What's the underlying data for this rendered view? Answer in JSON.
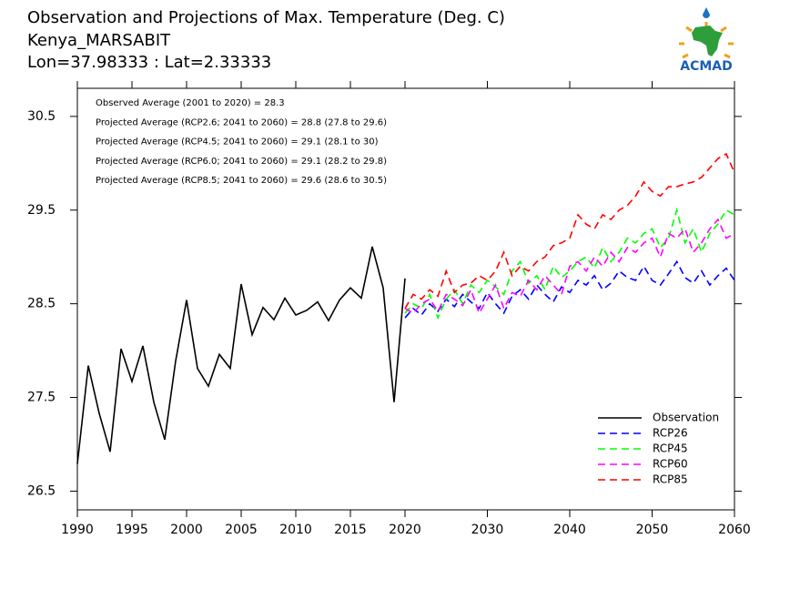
{
  "chart_data": {
    "type": "line",
    "title": "Observation and Projections of Max. Temperature (Deg. C)",
    "subtitle": [
      "Kenya_MARSABIT",
      "Lon=37.98333 : Lat=2.33333"
    ],
    "logo": "ACMAD",
    "annotations": [
      "Observed Average (2001 to 2020) = 28.3",
      "Projected Average (RCP2.6; 2041 to 2060) = 28.8 (27.8 to 29.6)",
      "Projected Average (RCP4.5; 2041 to 2060) = 29.1 (28.1 to 30)",
      "Projected Average (RCP6.0; 2041 to 2060) = 29.1 (28.2 to 29.8)",
      "Projected Average (RCP8.5; 2041 to 2060) = 29.6 (28.6 to 30.5)"
    ],
    "xlim": [
      1990,
      2060
    ],
    "xticks": [
      1990,
      1995,
      2000,
      2005,
      2010,
      2015,
      2020,
      2030,
      2040,
      2050,
      2060
    ],
    "ylim": [
      26.3,
      30.8
    ],
    "yticks": [
      26.5,
      27.5,
      28.5,
      29.5,
      30.5
    ],
    "legend": "lower right",
    "series": [
      {
        "name": "Observation",
        "color": "#000000",
        "dashed": false,
        "x": [
          1990,
          1991,
          1992,
          1993,
          1994,
          1995,
          1996,
          1997,
          1998,
          1999,
          2000,
          2001,
          2002,
          2003,
          2004,
          2005,
          2006,
          2007,
          2008,
          2009,
          2010,
          2011,
          2012,
          2013,
          2014,
          2015,
          2016,
          2017,
          2018,
          2019,
          2020
        ],
        "values": [
          26.79,
          27.84,
          27.33,
          26.92,
          28.02,
          27.67,
          28.05,
          27.45,
          27.05,
          27.89,
          28.54,
          27.81,
          27.62,
          27.96,
          27.81,
          28.71,
          28.17,
          28.46,
          28.33,
          28.56,
          28.38,
          28.43,
          28.52,
          28.32,
          28.54,
          28.67,
          28.56,
          29.11,
          28.67,
          27.45,
          28.77
        ]
      },
      {
        "name": "RCP26",
        "color": "#0000ff",
        "dashed": true,
        "x": [
          2020,
          2021,
          2022,
          2023,
          2024,
          2025,
          2026,
          2027,
          2028,
          2029,
          2030,
          2031,
          2032,
          2033,
          2034,
          2035,
          2036,
          2037,
          2038,
          2039,
          2040,
          2041,
          2042,
          2043,
          2044,
          2045,
          2046,
          2047,
          2048,
          2049,
          2050,
          2051,
          2052,
          2053,
          2054,
          2055,
          2056,
          2057,
          2058,
          2059,
          2060
        ],
        "values": [
          28.35,
          28.45,
          28.38,
          28.5,
          28.42,
          28.55,
          28.47,
          28.6,
          28.52,
          28.45,
          28.62,
          28.5,
          28.4,
          28.58,
          28.65,
          28.55,
          28.7,
          28.6,
          28.52,
          28.68,
          28.62,
          28.75,
          28.7,
          28.8,
          28.65,
          28.72,
          28.85,
          28.78,
          28.75,
          28.9,
          28.75,
          28.7,
          28.82,
          28.95,
          28.78,
          28.72,
          28.85,
          28.7,
          28.8,
          28.88,
          28.75
        ]
      },
      {
        "name": "RCP45",
        "color": "#00ff00",
        "dashed": true,
        "x": [
          2020,
          2021,
          2022,
          2023,
          2024,
          2025,
          2026,
          2027,
          2028,
          2029,
          2030,
          2031,
          2032,
          2033,
          2034,
          2035,
          2036,
          2037,
          2038,
          2039,
          2040,
          2041,
          2042,
          2043,
          2044,
          2045,
          2046,
          2047,
          2048,
          2049,
          2050,
          2051,
          2052,
          2053,
          2054,
          2055,
          2056,
          2057,
          2058,
          2059,
          2060
        ],
        "values": [
          28.4,
          28.5,
          28.45,
          28.6,
          28.35,
          28.55,
          28.65,
          28.5,
          28.7,
          28.62,
          28.75,
          28.68,
          28.6,
          28.85,
          28.95,
          28.72,
          28.8,
          28.65,
          28.9,
          28.78,
          28.85,
          28.95,
          29.0,
          28.88,
          29.1,
          28.95,
          29.05,
          29.2,
          29.15,
          29.25,
          29.3,
          29.1,
          29.2,
          29.5,
          29.15,
          29.3,
          29.05,
          29.25,
          29.35,
          29.5,
          29.45
        ]
      },
      {
        "name": "RCP60",
        "color": "#ff00ff",
        "dashed": true,
        "x": [
          2020,
          2021,
          2022,
          2023,
          2024,
          2025,
          2026,
          2027,
          2028,
          2029,
          2030,
          2031,
          2032,
          2033,
          2034,
          2035,
          2036,
          2037,
          2038,
          2039,
          2040,
          2041,
          2042,
          2043,
          2044,
          2045,
          2046,
          2047,
          2048,
          2049,
          2050,
          2051,
          2052,
          2053,
          2054,
          2055,
          2056,
          2057,
          2058,
          2059,
          2060
        ],
        "values": [
          28.45,
          28.4,
          28.5,
          28.55,
          28.42,
          28.6,
          28.55,
          28.48,
          28.65,
          28.4,
          28.55,
          28.7,
          28.45,
          28.62,
          28.58,
          28.75,
          28.65,
          28.8,
          28.7,
          28.6,
          28.9,
          28.95,
          28.85,
          29.0,
          28.9,
          29.05,
          28.95,
          29.1,
          29.05,
          29.15,
          29.2,
          29.0,
          29.25,
          29.2,
          29.3,
          29.05,
          29.15,
          29.3,
          29.4,
          29.2,
          29.25
        ]
      },
      {
        "name": "RCP85",
        "color": "#ff0000",
        "dashed": true,
        "x": [
          2020,
          2021,
          2022,
          2023,
          2024,
          2025,
          2026,
          2027,
          2028,
          2029,
          2030,
          2031,
          2032,
          2033,
          2034,
          2035,
          2036,
          2037,
          2038,
          2039,
          2040,
          2041,
          2042,
          2043,
          2044,
          2045,
          2046,
          2047,
          2048,
          2049,
          2050,
          2051,
          2052,
          2053,
          2054,
          2055,
          2056,
          2057,
          2058,
          2059,
          2060
        ],
        "values": [
          28.45,
          28.6,
          28.55,
          28.65,
          28.58,
          28.85,
          28.62,
          28.7,
          28.72,
          28.8,
          28.75,
          28.85,
          29.05,
          28.8,
          28.9,
          28.85,
          28.95,
          29.0,
          29.12,
          29.15,
          29.2,
          29.45,
          29.35,
          29.3,
          29.45,
          29.4,
          29.5,
          29.55,
          29.65,
          29.8,
          29.7,
          29.65,
          29.75,
          29.75,
          29.78,
          29.8,
          29.85,
          29.95,
          30.05,
          30.1,
          29.9
        ]
      }
    ]
  }
}
